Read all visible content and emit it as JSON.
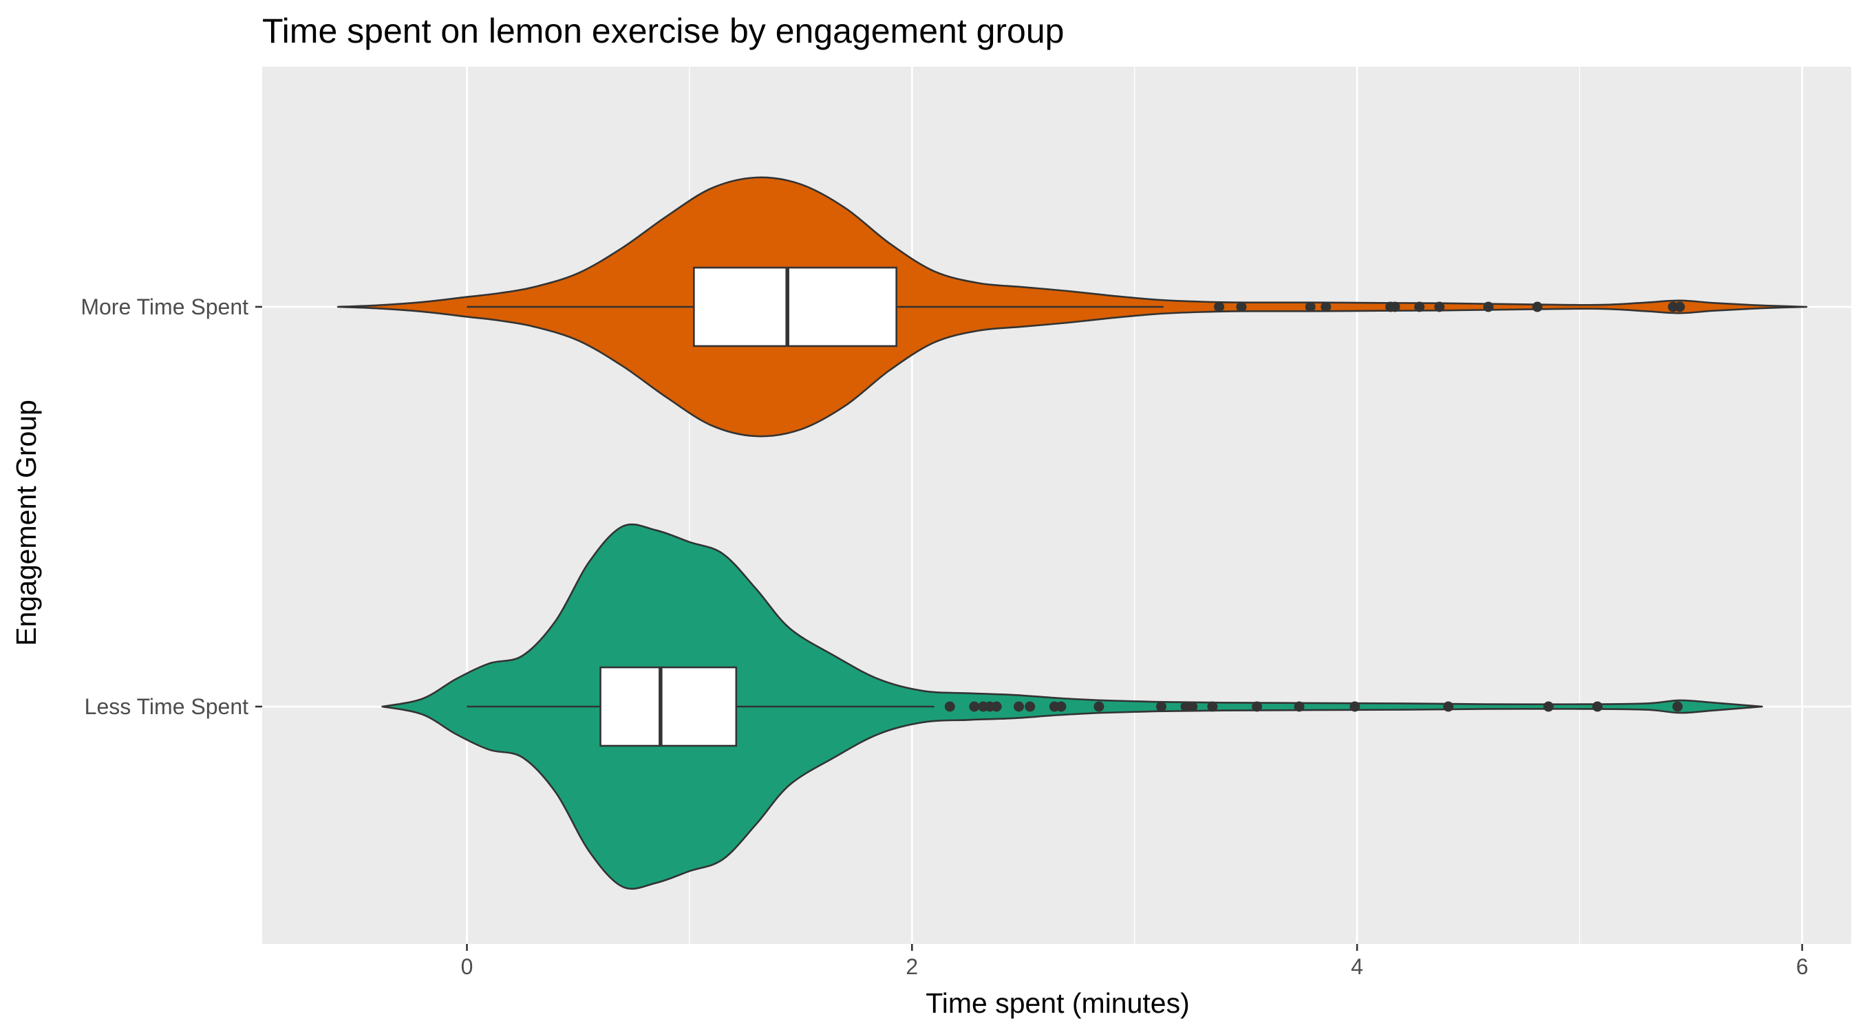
{
  "chart_data": {
    "type": "violin",
    "title": "Time spent on lemon exercise by engagement group",
    "xlabel": "Time spent (minutes)",
    "ylabel": "Engagement Group",
    "xlim": [
      -0.92,
      6.22
    ],
    "x_ticks": [
      0,
      2,
      4,
      6
    ],
    "x_minor_ticks": [
      -1,
      1,
      3,
      5
    ],
    "categories": [
      "More Time Spent",
      "Less Time Spent"
    ],
    "series": [
      {
        "name": "More Time Spent",
        "fill": "#d95f02",
        "violin_range": [
          -0.58,
          6.02
        ],
        "density_max": 0.327,
        "density": [
          [
            -0.58,
            0.0
          ],
          [
            -0.4,
            0.004
          ],
          [
            -0.2,
            0.012
          ],
          [
            0.0,
            0.025
          ],
          [
            0.15,
            0.035
          ],
          [
            0.3,
            0.05
          ],
          [
            0.5,
            0.085
          ],
          [
            0.7,
            0.15
          ],
          [
            0.9,
            0.23
          ],
          [
            1.1,
            0.3
          ],
          [
            1.3,
            0.327
          ],
          [
            1.5,
            0.31
          ],
          [
            1.7,
            0.25
          ],
          [
            1.9,
            0.16
          ],
          [
            2.1,
            0.09
          ],
          [
            2.3,
            0.06
          ],
          [
            2.5,
            0.05
          ],
          [
            2.7,
            0.04
          ],
          [
            2.9,
            0.028
          ],
          [
            3.1,
            0.018
          ],
          [
            3.3,
            0.013
          ],
          [
            3.5,
            0.011
          ],
          [
            3.8,
            0.011
          ],
          [
            4.1,
            0.01
          ],
          [
            4.4,
            0.009
          ],
          [
            4.8,
            0.006
          ],
          [
            5.1,
            0.005
          ],
          [
            5.3,
            0.011
          ],
          [
            5.45,
            0.016
          ],
          [
            5.6,
            0.01
          ],
          [
            5.8,
            0.004
          ],
          [
            6.02,
            0.0
          ]
        ],
        "box": {
          "whisker_low": 0.0,
          "q1": 1.02,
          "median": 1.44,
          "q3": 1.93,
          "whisker_high": 3.13
        },
        "outliers": [
          3.38,
          3.48,
          3.79,
          3.86,
          4.15,
          4.17,
          4.28,
          4.37,
          4.59,
          4.81,
          5.42,
          5.45
        ]
      },
      {
        "name": "Less Time Spent",
        "fill": "#1b9e77",
        "violin_range": [
          -0.38,
          5.82
        ],
        "density_max": 0.46,
        "density": [
          [
            -0.38,
            0.0
          ],
          [
            -0.2,
            0.02
          ],
          [
            -0.05,
            0.07
          ],
          [
            0.1,
            0.11
          ],
          [
            0.25,
            0.13
          ],
          [
            0.4,
            0.22
          ],
          [
            0.55,
            0.37
          ],
          [
            0.7,
            0.46
          ],
          [
            0.85,
            0.45
          ],
          [
            1.0,
            0.42
          ],
          [
            1.15,
            0.39
          ],
          [
            1.3,
            0.3
          ],
          [
            1.45,
            0.2
          ],
          [
            1.65,
            0.13
          ],
          [
            1.85,
            0.07
          ],
          [
            2.05,
            0.04
          ],
          [
            2.25,
            0.034
          ],
          [
            2.45,
            0.03
          ],
          [
            2.65,
            0.022
          ],
          [
            2.85,
            0.016
          ],
          [
            3.1,
            0.012
          ],
          [
            3.4,
            0.01
          ],
          [
            3.8,
            0.009
          ],
          [
            4.2,
            0.008
          ],
          [
            4.6,
            0.006
          ],
          [
            5.0,
            0.006
          ],
          [
            5.3,
            0.008
          ],
          [
            5.45,
            0.016
          ],
          [
            5.6,
            0.01
          ],
          [
            5.82,
            0.0
          ]
        ],
        "box": {
          "whisker_low": 0.0,
          "q1": 0.6,
          "median": 0.87,
          "q3": 1.21,
          "whisker_high": 2.1
        },
        "outliers": [
          2.17,
          2.28,
          2.32,
          2.35,
          2.38,
          2.48,
          2.53,
          2.64,
          2.67,
          2.84,
          3.12,
          3.23,
          3.26,
          3.35,
          3.55,
          3.74,
          3.99,
          4.41,
          4.86,
          5.08,
          5.44
        ]
      }
    ],
    "colors": {
      "panel_bg": "#ebebeb",
      "grid": "#ffffff",
      "outline": "#333333",
      "box_fill": "#ffffff"
    }
  }
}
